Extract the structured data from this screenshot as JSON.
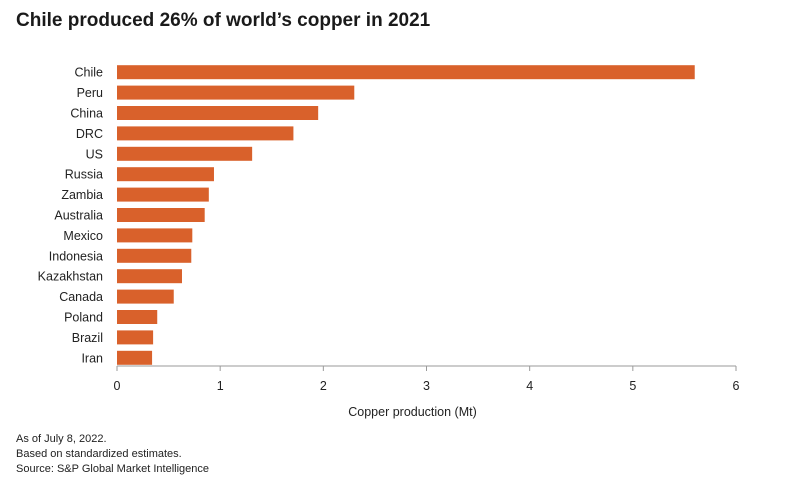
{
  "chart_data": {
    "type": "bar",
    "orientation": "horizontal",
    "title": "Chile produced 26% of world’s copper in 2021",
    "xlabel": "Copper production (Mt)",
    "ylabel": "",
    "xlim": [
      0,
      6
    ],
    "xticks": [
      "0",
      "1",
      "2",
      "3",
      "4",
      "5",
      "6"
    ],
    "grid": false,
    "bar_color": "#d9612b",
    "categories": [
      "Chile",
      "Peru",
      "China",
      "DRC",
      "US",
      "Russia",
      "Zambia",
      "Australia",
      "Mexico",
      "Indonesia",
      "Kazakhstan",
      "Canada",
      "Poland",
      "Brazil",
      "Iran"
    ],
    "values": [
      5.6,
      2.3,
      1.95,
      1.71,
      1.31,
      0.94,
      0.89,
      0.85,
      0.73,
      0.72,
      0.63,
      0.55,
      0.39,
      0.35,
      0.34
    ]
  },
  "notes": [
    "As of July 8, 2022.",
    "Based on standardized estimates.",
    "Source: S&P Global Market Intelligence"
  ]
}
